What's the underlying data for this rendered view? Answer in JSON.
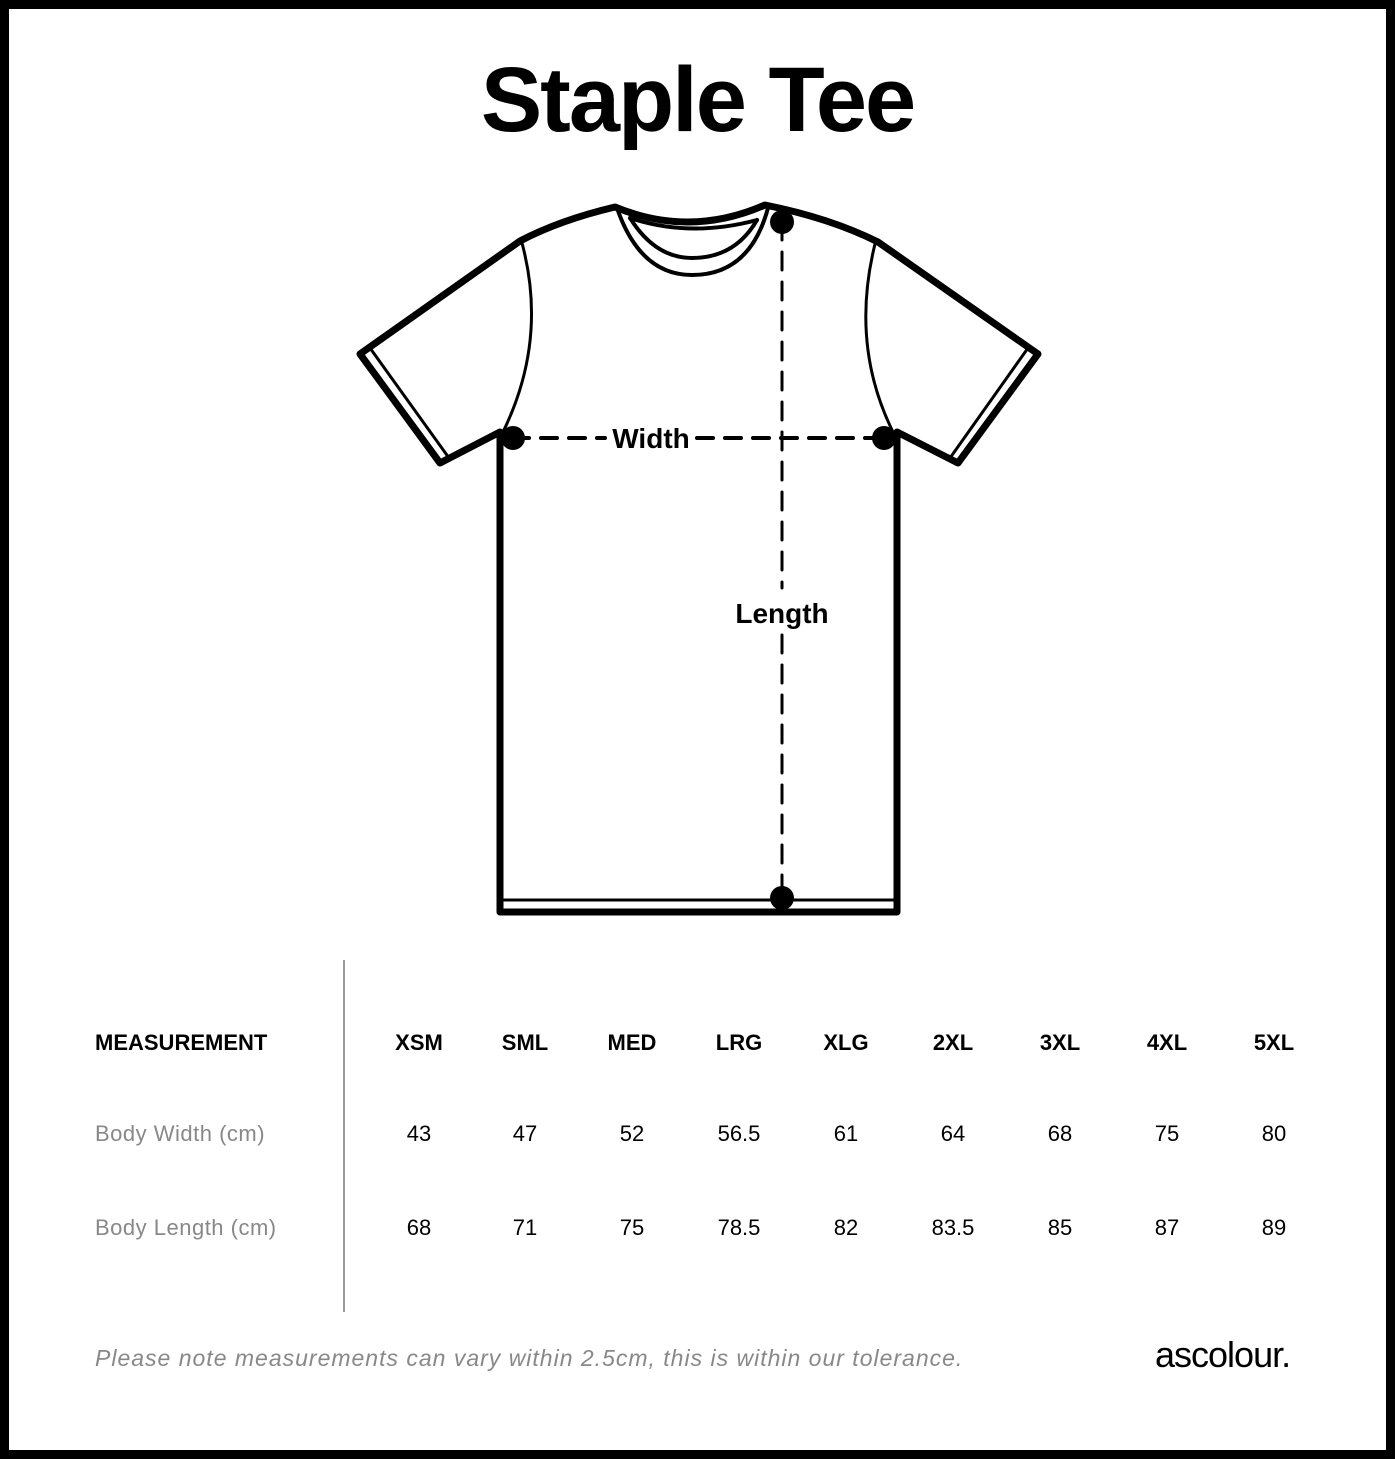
{
  "title": "Staple Tee",
  "diagram": {
    "width_label": "Width",
    "length_label": "Length"
  },
  "table": {
    "header_label": "MEASUREMENT",
    "sizes": [
      "XSM",
      "SML",
      "MED",
      "LRG",
      "XLG",
      "2XL",
      "3XL",
      "4XL",
      "5XL"
    ],
    "rows": [
      {
        "label": "Body Width (cm)",
        "values": [
          "43",
          "47",
          "52",
          "56.5",
          "61",
          "64",
          "68",
          "75",
          "80"
        ]
      },
      {
        "label": "Body Length (cm)",
        "values": [
          "68",
          "71",
          "75",
          "78.5",
          "82",
          "83.5",
          "85",
          "87",
          "89"
        ]
      }
    ]
  },
  "footer": {
    "note": "Please note measurements can vary within 2.5cm, this is within our tolerance.",
    "brand": "ascolour."
  }
}
